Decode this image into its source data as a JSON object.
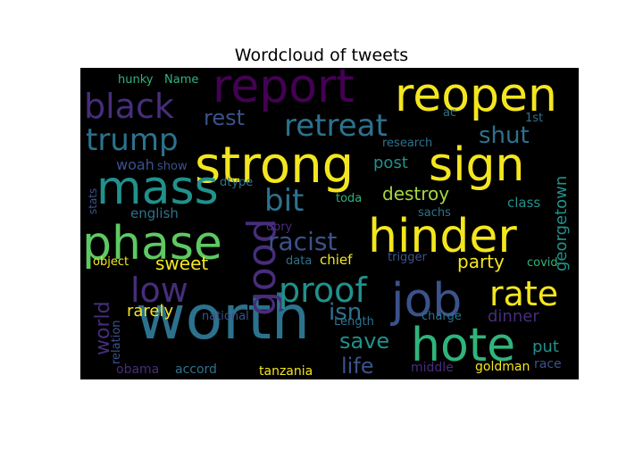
{
  "title": "Wordcloud of tweets",
  "palette": {
    "yellow": "#f4e61e",
    "lime": "#a4d93c",
    "green": "#5ec962",
    "teal_green": "#2fb47c",
    "teal": "#21918c",
    "blue_teal": "#2c728e",
    "blue": "#3b528b",
    "indigo": "#472d7b",
    "purple": "#440154"
  },
  "words": [
    {
      "text": "worth",
      "color": "blue_teal",
      "vertical": false
    },
    {
      "text": "strong",
      "color": "yellow",
      "vertical": false
    },
    {
      "text": "reopen",
      "color": "yellow",
      "vertical": false
    },
    {
      "text": "report",
      "color": "purple",
      "vertical": false
    },
    {
      "text": "sign",
      "color": "yellow",
      "vertical": false
    },
    {
      "text": "hinder",
      "color": "yellow",
      "vertical": false
    },
    {
      "text": "phase",
      "color": "green",
      "vertical": false
    },
    {
      "text": "mass",
      "color": "teal",
      "vertical": false
    },
    {
      "text": "job",
      "color": "blue",
      "vertical": false
    },
    {
      "text": "hote",
      "color": "teal_green",
      "vertical": false
    },
    {
      "text": "good",
      "color": "indigo",
      "vertical": true
    },
    {
      "text": "proof",
      "color": "teal",
      "vertical": false
    },
    {
      "text": "black",
      "color": "indigo",
      "vertical": false
    },
    {
      "text": "retreat",
      "color": "blue_teal",
      "vertical": false
    },
    {
      "text": "trump",
      "color": "blue_teal",
      "vertical": false
    },
    {
      "text": "rate",
      "color": "yellow",
      "vertical": false
    },
    {
      "text": "low",
      "color": "indigo",
      "vertical": false
    },
    {
      "text": "bit",
      "color": "blue_teal",
      "vertical": false
    },
    {
      "text": "racist",
      "color": "blue",
      "vertical": false
    },
    {
      "text": "isn",
      "color": "blue_teal",
      "vertical": false
    },
    {
      "text": "rest",
      "color": "blue",
      "vertical": false
    },
    {
      "text": "shut",
      "color": "blue_teal",
      "vertical": false
    },
    {
      "text": "save",
      "color": "teal",
      "vertical": false
    },
    {
      "text": "life",
      "color": "blue",
      "vertical": false
    },
    {
      "text": "world",
      "color": "indigo",
      "vertical": true
    },
    {
      "text": "destroy",
      "color": "lime",
      "vertical": false
    },
    {
      "text": "party",
      "color": "yellow",
      "vertical": false
    },
    {
      "text": "sweet",
      "color": "yellow",
      "vertical": false
    },
    {
      "text": "georgetown",
      "color": "teal",
      "vertical": true
    },
    {
      "text": "post",
      "color": "teal",
      "vertical": false
    },
    {
      "text": "dinner",
      "color": "indigo",
      "vertical": false
    },
    {
      "text": "rarely",
      "color": "yellow",
      "vertical": false
    },
    {
      "text": "put",
      "color": "teal",
      "vertical": false
    },
    {
      "text": "woah",
      "color": "blue",
      "vertical": false
    },
    {
      "text": "english",
      "color": "blue_teal",
      "vertical": false
    },
    {
      "text": "class",
      "color": "teal",
      "vertical": false
    },
    {
      "text": "hunky",
      "color": "teal_green",
      "vertical": false
    },
    {
      "text": "Name",
      "color": "teal_green",
      "vertical": false
    },
    {
      "text": "research",
      "color": "blue_teal",
      "vertical": false
    },
    {
      "text": "ac",
      "color": "blue_teal",
      "vertical": false
    },
    {
      "text": "1st",
      "color": "blue_teal",
      "vertical": false
    },
    {
      "text": "show",
      "color": "blue",
      "vertical": false
    },
    {
      "text": "dtype",
      "color": "blue_teal",
      "vertical": false
    },
    {
      "text": "stats",
      "color": "blue",
      "vertical": true
    },
    {
      "text": "toda",
      "color": "teal_green",
      "vertical": false
    },
    {
      "text": "sachs",
      "color": "blue_teal",
      "vertical": false
    },
    {
      "text": "dory",
      "color": "indigo",
      "vertical": false
    },
    {
      "text": "object",
      "color": "yellow",
      "vertical": false
    },
    {
      "text": "data",
      "color": "blue_teal",
      "vertical": false
    },
    {
      "text": "chief",
      "color": "yellow",
      "vertical": false
    },
    {
      "text": "trigger",
      "color": "blue",
      "vertical": false
    },
    {
      "text": "covid",
      "color": "teal_green",
      "vertical": false
    },
    {
      "text": "relation",
      "color": "blue",
      "vertical": true
    },
    {
      "text": "national",
      "color": "blue",
      "vertical": false
    },
    {
      "text": "Length",
      "color": "blue_teal",
      "vertical": false
    },
    {
      "text": "charge",
      "color": "blue_teal",
      "vertical": false
    },
    {
      "text": "obama",
      "color": "indigo",
      "vertical": false
    },
    {
      "text": "accord",
      "color": "blue_teal",
      "vertical": false
    },
    {
      "text": "tanzania",
      "color": "yellow",
      "vertical": false
    },
    {
      "text": "middle",
      "color": "indigo",
      "vertical": false
    },
    {
      "text": "goldman",
      "color": "yellow",
      "vertical": false
    },
    {
      "text": "race",
      "color": "blue",
      "vertical": false
    }
  ]
}
